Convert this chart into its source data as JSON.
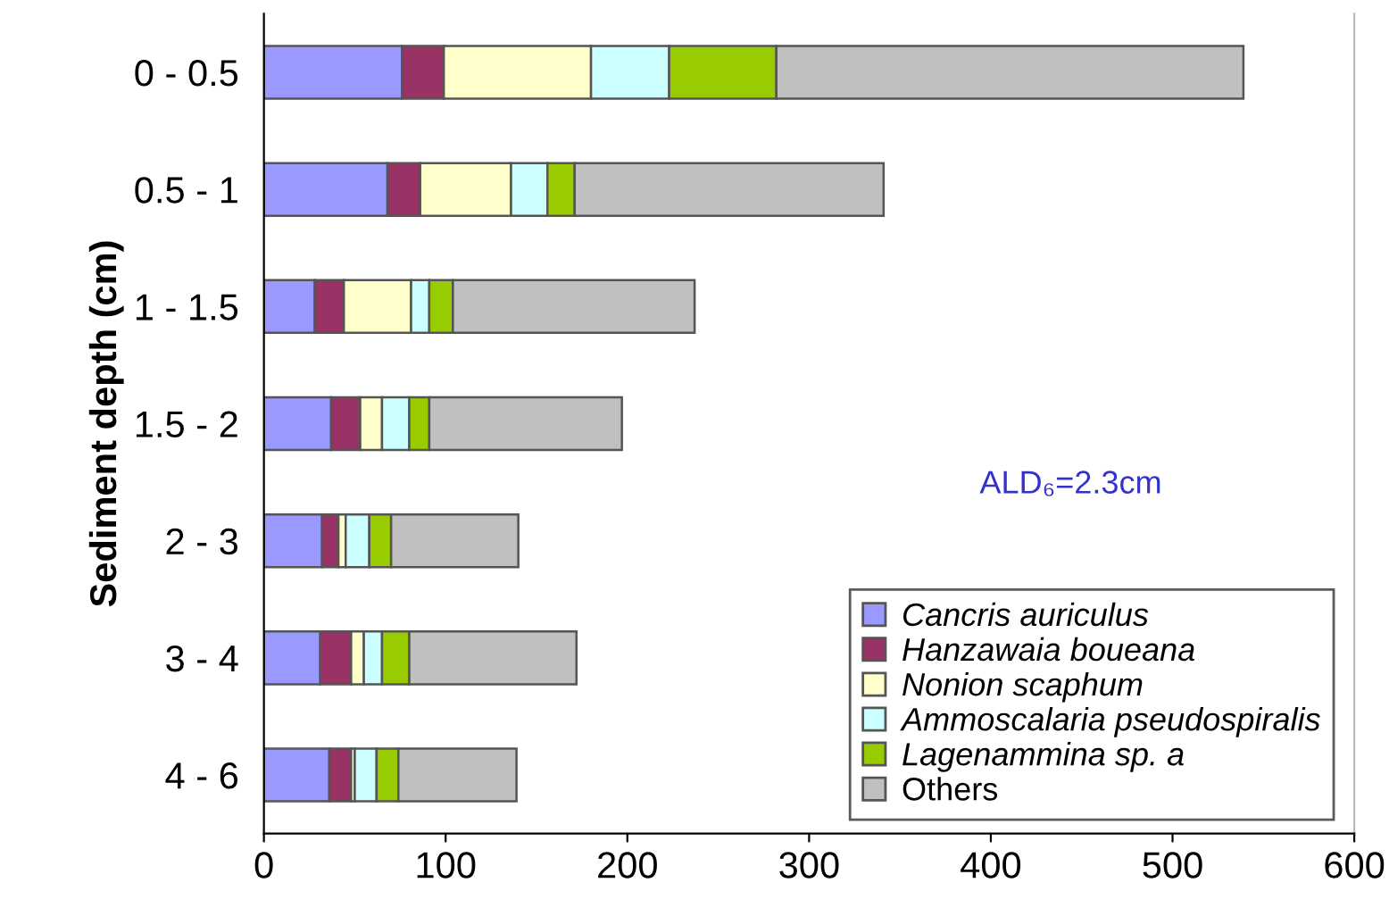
{
  "chart_data": {
    "type": "bar",
    "orientation": "horizontal",
    "stacked": true,
    "ylabel": "Sediment depth (cm)",
    "categories": [
      "0 - 0.5",
      "0.5 - 1",
      "1 - 1.5",
      "1.5 - 2",
      "2 - 3",
      "3 - 4",
      "4 - 6"
    ],
    "series": [
      {
        "name": "Cancris auriculus",
        "color": "#9999ff",
        "values": [
          76,
          68,
          28,
          37,
          32,
          31,
          36
        ]
      },
      {
        "name": "Hanzawaia boueana",
        "color": "#993366",
        "values": [
          23,
          18,
          16,
          16,
          9,
          17,
          12
        ]
      },
      {
        "name": "Nonion scaphum",
        "color": "#ffffcc",
        "values": [
          81,
          50,
          37,
          12,
          4,
          7,
          2
        ]
      },
      {
        "name": "Ammoscalaria pseudospiralis",
        "color": "#ccffff",
        "values": [
          43,
          20,
          10,
          15,
          13,
          10,
          12
        ]
      },
      {
        "name": "Lagenammina sp. a",
        "color": "#99cc00",
        "values": [
          59,
          15,
          13,
          11,
          12,
          15,
          12
        ]
      },
      {
        "name": "Others",
        "color": "#c0c0c0",
        "values": [
          257,
          170,
          133,
          106,
          70,
          92,
          65
        ]
      }
    ],
    "xlim": [
      0,
      600
    ],
    "xticks": [
      0,
      100,
      200,
      300,
      400,
      500,
      600
    ],
    "grid": false,
    "legend": "bottom right",
    "annotations": [
      "ALD₆=2.3cm"
    ]
  }
}
